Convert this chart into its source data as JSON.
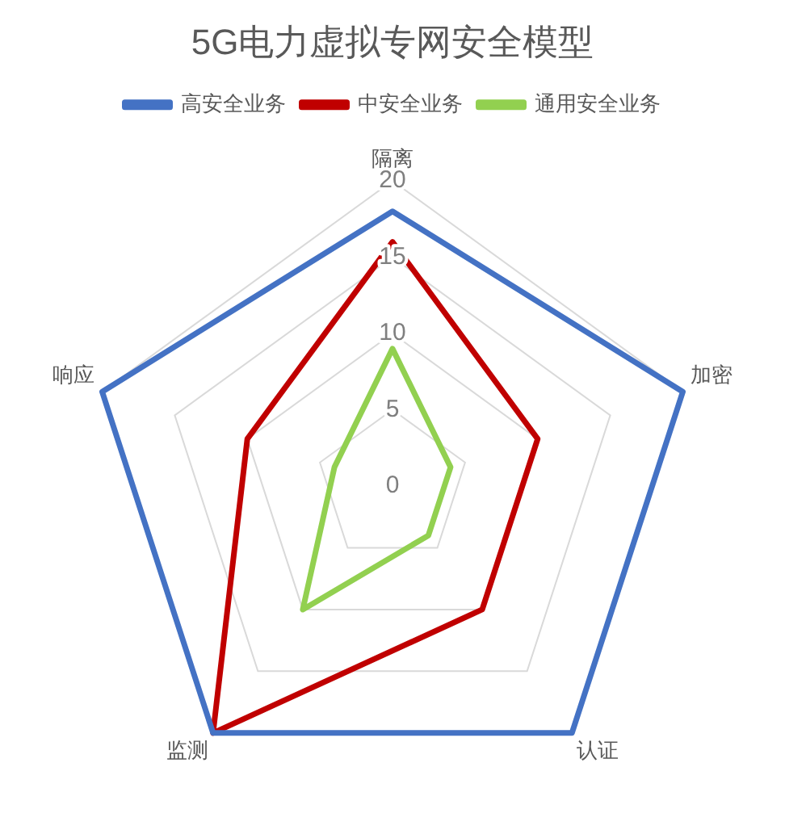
{
  "chart_data": {
    "type": "radar",
    "title": "5G电力虚拟专网安全模型",
    "categories": [
      "隔离",
      "加密",
      "认证",
      "监测",
      "响应"
    ],
    "series": [
      {
        "name": "高安全业务",
        "color": "#4472c4",
        "values": [
          18,
          20,
          20,
          20,
          20
        ]
      },
      {
        "name": "中安全业务",
        "color": "#c00000",
        "values": [
          16,
          10,
          10,
          20,
          10
        ]
      },
      {
        "name": "通用安全业务",
        "color": "#92d050",
        "values": [
          9,
          4,
          4,
          10,
          4
        ]
      }
    ],
    "ylim": [
      0,
      20
    ],
    "yticks": [
      0,
      5,
      10,
      15,
      20
    ],
    "grid": true,
    "legend": "top",
    "marker": "none"
  }
}
